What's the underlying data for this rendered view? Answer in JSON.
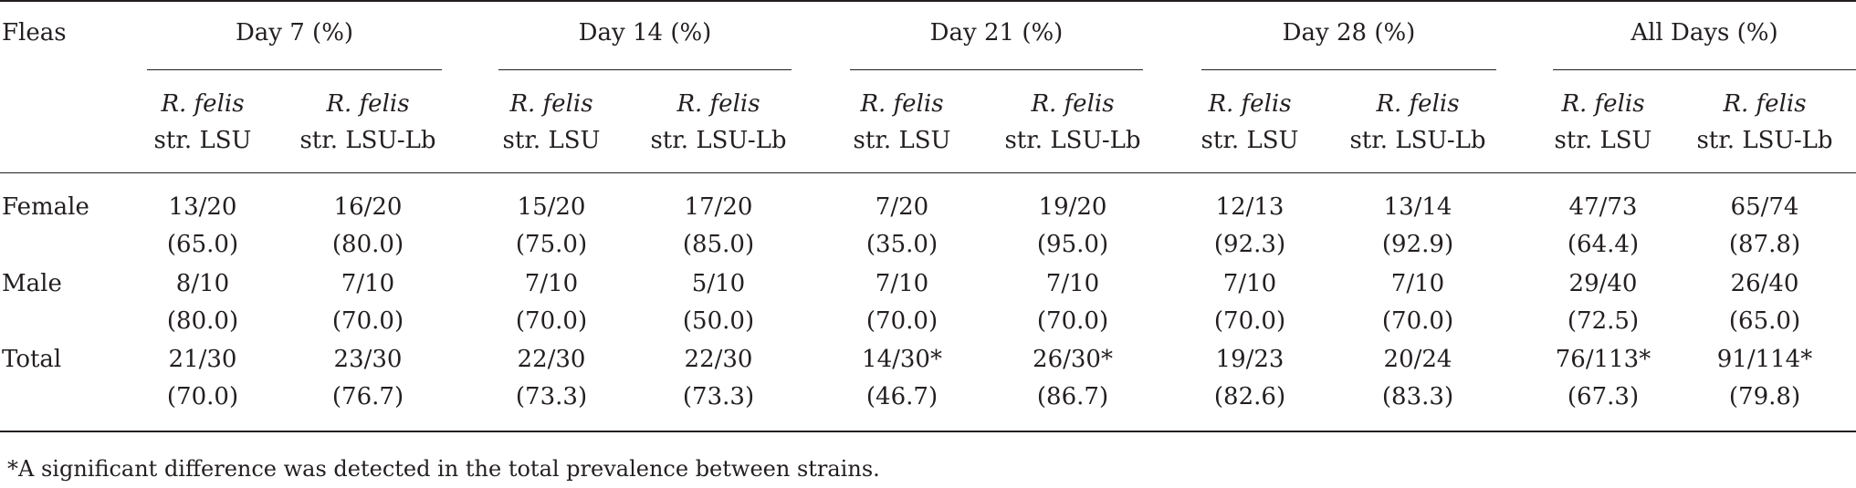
{
  "table": {
    "stub_header": "Fleas",
    "groups": [
      "Day 7 (%)",
      "Day 14 (%)",
      "Day 21 (%)",
      "Day 28 (%)",
      "All Days (%)"
    ],
    "subheader": {
      "strain_name": "R. felis",
      "lsu": "str. LSU",
      "lsulb": "str. LSU-Lb"
    },
    "rows": [
      {
        "label": "Female",
        "cells": [
          [
            "13/20",
            "(65.0)"
          ],
          [
            "16/20",
            "(80.0)"
          ],
          [
            "15/20",
            "(75.0)"
          ],
          [
            "17/20",
            "(85.0)"
          ],
          [
            "7/20",
            "(35.0)"
          ],
          [
            "19/20",
            "(95.0)"
          ],
          [
            "12/13",
            "(92.3)"
          ],
          [
            "13/14",
            "(92.9)"
          ],
          [
            "47/73",
            "(64.4)"
          ],
          [
            "65/74",
            "(87.8)"
          ]
        ]
      },
      {
        "label": "Male",
        "cells": [
          [
            "8/10",
            "(80.0)"
          ],
          [
            "7/10",
            "(70.0)"
          ],
          [
            "7/10",
            "(70.0)"
          ],
          [
            "5/10",
            "(50.0)"
          ],
          [
            "7/10",
            "(70.0)"
          ],
          [
            "7/10",
            "(70.0)"
          ],
          [
            "7/10",
            "(70.0)"
          ],
          [
            "7/10",
            "(70.0)"
          ],
          [
            "29/40",
            "(72.5)"
          ],
          [
            "26/40",
            "(65.0)"
          ]
        ]
      },
      {
        "label": "Total",
        "cells": [
          [
            "21/30",
            "(70.0)"
          ],
          [
            "23/30",
            "(76.7)"
          ],
          [
            "22/30",
            "(73.3)"
          ],
          [
            "22/30",
            "(73.3)"
          ],
          [
            "14/30*",
            "(46.7)"
          ],
          [
            "26/30*",
            "(86.7)"
          ],
          [
            "19/23",
            "(82.6)"
          ],
          [
            "20/24",
            "(83.3)"
          ],
          [
            "76/113*",
            "(67.3)"
          ],
          [
            "91/114*",
            "(79.8)"
          ]
        ]
      }
    ],
    "footnote": "*A significant difference was detected in the total prevalence between strains."
  }
}
